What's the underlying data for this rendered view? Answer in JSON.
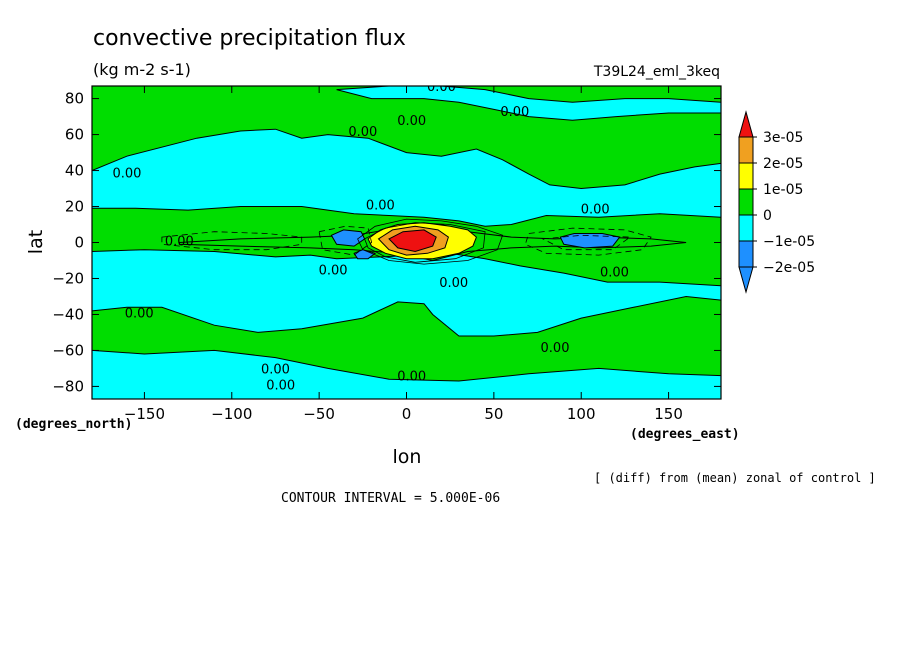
{
  "chart_data": {
    "type": "contour",
    "title": "convective precipitation flux",
    "units": "(kg m-2 s-1)",
    "run_label": "T39L24_eml_3keq",
    "xlabel": "lon",
    "ylabel": "lat",
    "x_unit_label": "(degrees_east)",
    "y_unit_label": "(degrees_north)",
    "xlim": [
      -180,
      180
    ],
    "ylim": [
      -87,
      87
    ],
    "x_ticks": [
      -150,
      -100,
      -50,
      0,
      50,
      100,
      150
    ],
    "x_tick_labels": [
      "−150",
      "−100",
      "−50",
      "0",
      "50",
      "100",
      "150"
    ],
    "y_ticks": [
      80,
      60,
      40,
      20,
      0,
      -20,
      -40,
      -60,
      -80
    ],
    "y_tick_labels": [
      "80",
      "60",
      "40",
      "20",
      "0",
      "−20",
      "−40",
      "−60",
      "−80"
    ],
    "note": "[ (diff) from (mean) zonal of control ]",
    "contour_interval": "CONTOUR INTERVAL = 5.000E-06",
    "contour_label": "0.00",
    "legend": {
      "position": "right",
      "levels": [
        {
          "label": "3e-05",
          "color": "#f0a020"
        },
        {
          "label": "2e-05",
          "color": "#ffff00"
        },
        {
          "label": "1e-05",
          "color": "#00dd00"
        },
        {
          "label": "0",
          "color": "#00ffff"
        },
        {
          "label": "−1e-05",
          "color": "#1e90ff"
        },
        {
          "label": "−2e-05",
          "color": null
        }
      ],
      "top_color": "#ee1111",
      "bottom_color": "#1e90ff"
    },
    "colors": {
      "cyan": "#00ffff",
      "green": "#00dd00",
      "blue": "#1e90ff",
      "yellow": "#ffff00",
      "orange": "#f0a020",
      "red": "#ee1111"
    },
    "regions": [
      {
        "fill": "green",
        "points": [
          [
            -180,
            87
          ],
          [
            180,
            87
          ],
          [
            180,
            -87
          ],
          [
            -180,
            -87
          ]
        ]
      },
      {
        "fill": "cyan",
        "points": [
          [
            -180,
            40
          ],
          [
            -160,
            48
          ],
          [
            -120,
            58
          ],
          [
            -95,
            62
          ],
          [
            -75,
            63
          ],
          [
            -60,
            58
          ],
          [
            -45,
            60
          ],
          [
            -22,
            58
          ],
          [
            0,
            50
          ],
          [
            20,
            48
          ],
          [
            40,
            52
          ],
          [
            55,
            46
          ],
          [
            70,
            38
          ],
          [
            82,
            32
          ],
          [
            100,
            30
          ],
          [
            125,
            32
          ],
          [
            145,
            38
          ],
          [
            165,
            42
          ],
          [
            180,
            44
          ],
          [
            180,
            14
          ],
          [
            145,
            16
          ],
          [
            110,
            14
          ],
          [
            80,
            15
          ],
          [
            60,
            10
          ],
          [
            45,
            9
          ],
          [
            30,
            12
          ],
          [
            10,
            14
          ],
          [
            -10,
            15
          ],
          [
            -30,
            16
          ],
          [
            -60,
            20
          ],
          [
            -95,
            20
          ],
          [
            -125,
            18
          ],
          [
            -155,
            19
          ],
          [
            -180,
            19
          ]
        ]
      },
      {
        "fill": "cyan",
        "points": [
          [
            -180,
            -5
          ],
          [
            -150,
            -4
          ],
          [
            -110,
            -5
          ],
          [
            -75,
            -8
          ],
          [
            -55,
            -7
          ],
          [
            -40,
            -9
          ],
          [
            -15,
            -8
          ],
          [
            5,
            -7
          ],
          [
            25,
            -6
          ],
          [
            45,
            -9
          ],
          [
            65,
            -13
          ],
          [
            90,
            -17
          ],
          [
            115,
            -22
          ],
          [
            145,
            -22
          ],
          [
            180,
            -24
          ],
          [
            180,
            -32
          ],
          [
            160,
            -30
          ],
          [
            130,
            -36
          ],
          [
            100,
            -42
          ],
          [
            75,
            -50
          ],
          [
            50,
            -52
          ],
          [
            30,
            -52
          ],
          [
            15,
            -40
          ],
          [
            10,
            -34
          ],
          [
            -5,
            -33
          ],
          [
            -25,
            -42
          ],
          [
            -60,
            -48
          ],
          [
            -85,
            -50
          ],
          [
            -110,
            -46
          ],
          [
            -140,
            -36
          ],
          [
            -160,
            -36
          ],
          [
            -180,
            -38
          ]
        ]
      },
      {
        "fill": "cyan",
        "points": [
          [
            -180,
            -60
          ],
          [
            -150,
            -62
          ],
          [
            -110,
            -60
          ],
          [
            -75,
            -64
          ],
          [
            -45,
            -70
          ],
          [
            -10,
            -76
          ],
          [
            30,
            -77
          ],
          [
            70,
            -73
          ],
          [
            110,
            -70
          ],
          [
            150,
            -73
          ],
          [
            180,
            -74
          ],
          [
            180,
            -87
          ],
          [
            -180,
            -87
          ]
        ]
      },
      {
        "fill": "cyan",
        "points": [
          [
            -40,
            85
          ],
          [
            -10,
            87
          ],
          [
            20,
            87
          ],
          [
            45,
            85
          ],
          [
            70,
            80
          ],
          [
            95,
            78
          ],
          [
            125,
            80
          ],
          [
            150,
            80
          ],
          [
            180,
            78
          ],
          [
            180,
            72
          ],
          [
            150,
            72
          ],
          [
            120,
            70
          ],
          [
            95,
            68
          ],
          [
            70,
            70
          ],
          [
            50,
            74
          ],
          [
            30,
            78
          ],
          [
            10,
            80
          ],
          [
            -20,
            80
          ]
        ]
      },
      {
        "fill": "green",
        "points": [
          [
            -130,
            0
          ],
          [
            -95,
            2
          ],
          [
            -55,
            3
          ],
          [
            -30,
            4
          ],
          [
            -5,
            8
          ],
          [
            20,
            10
          ],
          [
            35,
            6
          ],
          [
            60,
            3
          ],
          [
            85,
            2
          ],
          [
            110,
            3
          ],
          [
            140,
            2
          ],
          [
            160,
            0
          ],
          [
            140,
            -2
          ],
          [
            110,
            -3
          ],
          [
            85,
            -2
          ],
          [
            60,
            -3
          ],
          [
            35,
            -5
          ],
          [
            15,
            -10
          ],
          [
            -5,
            -6
          ],
          [
            -30,
            -4
          ],
          [
            -55,
            -3
          ],
          [
            -95,
            -2
          ],
          [
            -130,
            -1
          ]
        ]
      },
      {
        "fill": "blue",
        "points": [
          [
            -43,
            4
          ],
          [
            -36,
            7
          ],
          [
            -26,
            6
          ],
          [
            -24,
            2
          ],
          [
            -30,
            -2
          ],
          [
            -40,
            -1
          ]
        ]
      },
      {
        "fill": "blue",
        "points": [
          [
            -30,
            -6
          ],
          [
            -25,
            -4
          ],
          [
            -18,
            -6
          ],
          [
            -22,
            -9
          ],
          [
            -28,
            -9
          ]
        ]
      },
      {
        "fill": "blue",
        "points": [
          [
            88,
            3
          ],
          [
            96,
            5
          ],
          [
            112,
            5
          ],
          [
            122,
            3
          ],
          [
            118,
            -2
          ],
          [
            102,
            -3
          ],
          [
            90,
            -1
          ]
        ]
      },
      {
        "fill": "yellow",
        "points": [
          [
            -22,
            2
          ],
          [
            -15,
            7
          ],
          [
            -5,
            10
          ],
          [
            10,
            11
          ],
          [
            25,
            9
          ],
          [
            35,
            7
          ],
          [
            40,
            3
          ],
          [
            38,
            -2
          ],
          [
            30,
            -6
          ],
          [
            15,
            -9
          ],
          [
            0,
            -9
          ],
          [
            -12,
            -6
          ],
          [
            -20,
            -2
          ]
        ]
      },
      {
        "fill": "orange",
        "points": [
          [
            -16,
            2
          ],
          [
            -8,
            7
          ],
          [
            5,
            9
          ],
          [
            18,
            7
          ],
          [
            24,
            3
          ],
          [
            22,
            -3
          ],
          [
            12,
            -6
          ],
          [
            0,
            -7
          ],
          [
            -10,
            -4
          ]
        ]
      },
      {
        "fill": "red",
        "points": [
          [
            -10,
            2
          ],
          [
            -2,
            6
          ],
          [
            10,
            7
          ],
          [
            17,
            3
          ],
          [
            15,
            -2
          ],
          [
            5,
            -5
          ],
          [
            -5,
            -3
          ]
        ]
      }
    ],
    "contour_label_positions": [
      [
        20,
        87
      ],
      [
        62,
        73
      ],
      [
        3,
        68
      ],
      [
        -25,
        62
      ],
      [
        -160,
        39
      ],
      [
        -15,
        21
      ],
      [
        108,
        19
      ],
      [
        -130,
        1
      ],
      [
        -42,
        -15
      ],
      [
        119,
        -16
      ],
      [
        27,
        -22
      ],
      [
        -153,
        -39
      ],
      [
        85,
        -58
      ],
      [
        -75,
        -70
      ],
      [
        3,
        -74
      ],
      [
        -72,
        -79
      ]
    ],
    "dashed_contours": [
      [
        [
          -140,
          3
        ],
        [
          -110,
          6
        ],
        [
          -80,
          5
        ],
        [
          -60,
          3
        ],
        [
          -60,
          -1
        ],
        [
          -80,
          -4
        ],
        [
          -110,
          -4
        ],
        [
          -140,
          -1
        ]
      ],
      [
        [
          -50,
          6
        ],
        [
          -35,
          9
        ],
        [
          -22,
          8
        ],
        [
          -20,
          0
        ],
        [
          -30,
          -7
        ],
        [
          -48,
          -4
        ]
      ],
      [
        [
          70,
          5
        ],
        [
          95,
          8
        ],
        [
          125,
          7
        ],
        [
          140,
          3
        ],
        [
          135,
          -4
        ],
        [
          110,
          -7
        ],
        [
          80,
          -6
        ],
        [
          68,
          -1
        ]
      ],
      [
        [
          78,
          2
        ],
        [
          100,
          4
        ],
        [
          128,
          3
        ],
        [
          118,
          -4
        ],
        [
          90,
          -4
        ]
      ]
    ],
    "solid_contours": [
      [
        [
          -28,
          2
        ],
        [
          -18,
          9
        ],
        [
          0,
          13
        ],
        [
          20,
          12
        ],
        [
          40,
          9
        ],
        [
          55,
          4
        ],
        [
          52,
          -4
        ],
        [
          35,
          -10
        ],
        [
          10,
          -12
        ],
        [
          -10,
          -10
        ],
        [
          -25,
          -4
        ]
      ],
      [
        [
          -24,
          2
        ],
        [
          -12,
          8
        ],
        [
          5,
          11
        ],
        [
          25,
          10
        ],
        [
          45,
          6
        ],
        [
          44,
          -3
        ],
        [
          28,
          -9
        ],
        [
          5,
          -11
        ],
        [
          -12,
          -8
        ],
        [
          -22,
          -3
        ]
      ]
    ]
  }
}
